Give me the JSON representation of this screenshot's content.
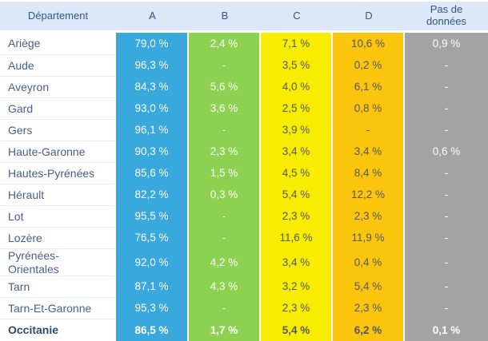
{
  "colors": {
    "header_bg": "#dce8f7",
    "header_text": "#31567e",
    "department_text": "#456189",
    "total_text": "#2c4a6e",
    "band_a": "#39a8dd",
    "band_b": "#8cd150",
    "band_c": "#f8ec00",
    "band_d": "#fbc40d",
    "band_no_data": "#a3a3a3",
    "value_text_dark": "#54585c",
    "value_text_light": "#ffffff",
    "row_separator": "#e9eef6"
  },
  "chart_data": {
    "type": "table",
    "title": "",
    "columns": [
      "Département",
      "A",
      "B",
      "C",
      "D",
      "Pas de données"
    ],
    "categories": [
      "Ariège",
      "Aude",
      "Aveyron",
      "Gard",
      "Gers",
      "Haute-Garonne",
      "Hautes-Pyrénées",
      "Hérault",
      "Lot",
      "Lozère",
      "Pyrénées-Orientales",
      "Tarn",
      "Tarn-Et-Garonne",
      "Occitanie"
    ],
    "series": [
      {
        "name": "A",
        "values": [
          79.0,
          96.3,
          84.3,
          93.0,
          96.1,
          90.3,
          85.6,
          82.2,
          95.5,
          76.5,
          92.0,
          87.1,
          95.3,
          86.5
        ]
      },
      {
        "name": "B",
        "values": [
          2.4,
          null,
          5.6,
          3.6,
          null,
          2.3,
          1.5,
          0.3,
          null,
          null,
          4.2,
          4.3,
          null,
          1.7
        ]
      },
      {
        "name": "C",
        "values": [
          7.1,
          3.5,
          4.0,
          2.5,
          3.9,
          3.4,
          4.5,
          5.4,
          2.3,
          11.6,
          3.4,
          3.2,
          2.3,
          5.4
        ]
      },
      {
        "name": "D",
        "values": [
          10.6,
          0.2,
          6.1,
          0.8,
          null,
          3.4,
          8.4,
          12.2,
          2.3,
          11.9,
          0.4,
          5.4,
          2.3,
          6.2
        ]
      },
      {
        "name": "Pas de données",
        "values": [
          0.9,
          null,
          null,
          null,
          null,
          0.6,
          null,
          null,
          null,
          null,
          null,
          null,
          null,
          0.1
        ]
      }
    ],
    "unit": "%"
  },
  "table": {
    "columns": [
      {
        "label": "Département"
      },
      {
        "label": "A"
      },
      {
        "label": "B"
      },
      {
        "label": "C"
      },
      {
        "label": "D"
      },
      {
        "label": "Pas de données"
      }
    ],
    "rows": [
      {
        "name": "Ariège",
        "a": "79,0 %",
        "b": "2,4 %",
        "c": "7,1 %",
        "d": "10,6 %",
        "nd": "0,9 %"
      },
      {
        "name": "Aude",
        "a": "96,3 %",
        "b": "-",
        "c": "3,5 %",
        "d": "0,2 %",
        "nd": "-"
      },
      {
        "name": "Aveyron",
        "a": "84,3 %",
        "b": "5,6 %",
        "c": "4,0 %",
        "d": "6,1 %",
        "nd": "-"
      },
      {
        "name": "Gard",
        "a": "93,0 %",
        "b": "3,6 %",
        "c": "2,5 %",
        "d": "0,8 %",
        "nd": "-"
      },
      {
        "name": "Gers",
        "a": "96,1 %",
        "b": "-",
        "c": "3,9 %",
        "d": "-",
        "nd": "-"
      },
      {
        "name": "Haute-Garonne",
        "a": "90,3 %",
        "b": "2,3 %",
        "c": "3,4 %",
        "d": "3,4 %",
        "nd": "0,6 %"
      },
      {
        "name": "Hautes-Pyrénées",
        "a": "85,6 %",
        "b": "1,5 %",
        "c": "4,5 %",
        "d": "8,4 %",
        "nd": "-"
      },
      {
        "name": "Hérault",
        "a": "82,2 %",
        "b": "0,3 %",
        "c": "5,4 %",
        "d": "12,2 %",
        "nd": "-"
      },
      {
        "name": "Lot",
        "a": "95,5 %",
        "b": "-",
        "c": "2,3 %",
        "d": "2,3 %",
        "nd": "-"
      },
      {
        "name": "Lozère",
        "a": "76,5 %",
        "b": "-",
        "c": "11,6 %",
        "d": "11,9 %",
        "nd": "-"
      },
      {
        "name": "Pyrénées-Orientales",
        "a": "92,0 %",
        "b": "4,2 %",
        "c": "3,4 %",
        "d": "0,4 %",
        "nd": "-"
      },
      {
        "name": "Tarn",
        "a": "87,1 %",
        "b": "4,3 %",
        "c": "3,2 %",
        "d": "5,4 %",
        "nd": "-"
      },
      {
        "name": "Tarn-Et-Garonne",
        "a": "95,3 %",
        "b": "-",
        "c": "2,3 %",
        "d": "2,3 %",
        "nd": "-"
      },
      {
        "name": "Occitanie",
        "a": "86,5 %",
        "b": "1,7 %",
        "c": "5,4 %",
        "d": "6,2 %",
        "nd": "0,1 %"
      }
    ]
  }
}
